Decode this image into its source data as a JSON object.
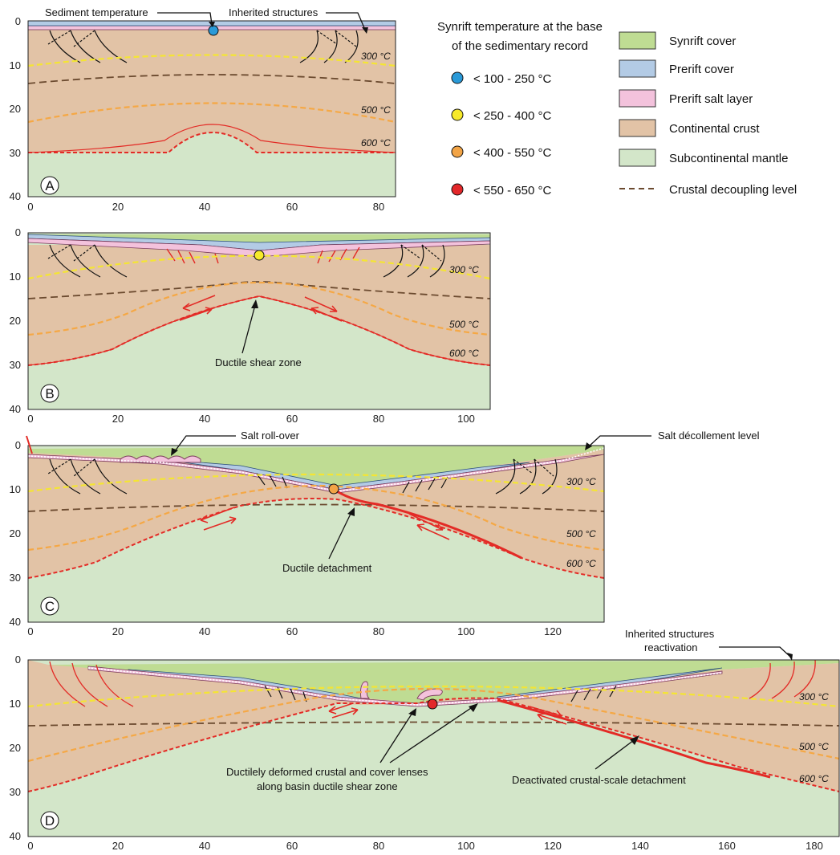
{
  "colors": {
    "synrift": "#bfdc93",
    "prerift": "#b3cbe5",
    "salt": "#f3c2dc",
    "crust": "#e2c3a6",
    "mantle": "#d3e6c9",
    "decoupling": "#6b4a2f",
    "t300": "#f4e533",
    "t500": "#f5a845",
    "t600": "#e32b26",
    "fault": "#e32b26",
    "dot_blue": "#2a9ad8",
    "dot_yellow": "#f7ea2a",
    "dot_orange": "#f2a446",
    "dot_red": "#e3272a"
  },
  "panels": [
    {
      "label": "A",
      "x_ticks": [
        "0",
        "20",
        "40",
        "60",
        "80"
      ],
      "y_ticks": [
        "0",
        "10",
        "20",
        "30",
        "40"
      ],
      "temps": [
        "300 °C",
        "500 °C",
        "600 °C"
      ],
      "annotations": [
        "Sediment temperature",
        "Inherited structures"
      ]
    },
    {
      "label": "B",
      "x_ticks": [
        "0",
        "20",
        "40",
        "60",
        "80",
        "100"
      ],
      "y_ticks": [
        "0",
        "10",
        "20",
        "30",
        "40"
      ],
      "temps": [
        "300 °C",
        "500 °C",
        "600 °C"
      ],
      "annotations": [
        "Ductile shear zone"
      ]
    },
    {
      "label": "C",
      "x_ticks": [
        "0",
        "20",
        "40",
        "60",
        "80",
        "100",
        "120"
      ],
      "y_ticks": [
        "0",
        "10",
        "20",
        "30",
        "40"
      ],
      "temps": [
        "300 °C",
        "500 °C",
        "600 °C"
      ],
      "annotations": [
        "Salt roll-over",
        "Salt décollement level",
        "Ductile detachment"
      ]
    },
    {
      "label": "D",
      "x_ticks": [
        "0",
        "20",
        "40",
        "60",
        "80",
        "100",
        "120",
        "140",
        "160",
        "180"
      ],
      "y_ticks": [
        "0",
        "10",
        "20",
        "30",
        "40"
      ],
      "temps": [
        "300 °C",
        "500 °C",
        "600 °C"
      ],
      "annotations": [
        "Inherited structures",
        "reactivation",
        "Ductilely deformed  crustal and cover lenses",
        "along basin ductile shear zone",
        "Deactivated crustal-scale detachment"
      ]
    }
  ],
  "temperature_legend": {
    "title_line1": "Synrift temperature at the base",
    "title_line2": "of the sedimentary record",
    "items": [
      "< 100 - 250 °C",
      "< 250 - 400 °C",
      "< 400 - 550 °C",
      "< 550 - 650 °C"
    ]
  },
  "unit_legend": {
    "items": [
      "Synrift cover",
      "Prerift cover",
      "Prerift salt layer",
      "Continental crust",
      "Subcontinental mantle",
      "Crustal decoupling level"
    ]
  }
}
